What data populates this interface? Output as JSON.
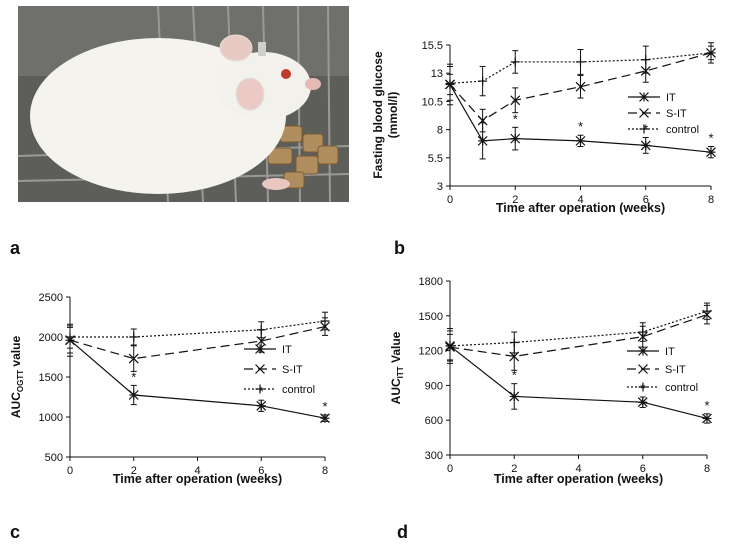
{
  "panels": {
    "a": {
      "letter": "a"
    },
    "b": {
      "letter": "b"
    },
    "c": {
      "letter": "c"
    },
    "d": {
      "letter": "d"
    }
  },
  "photo": {
    "subject": "white-rat-in-cage"
  },
  "colors": {
    "line": "#111111",
    "photo_bg": "#6f6f6c",
    "fur": "#f4f3ee",
    "food": "#b08d5e"
  },
  "chart_data": [
    {
      "id": "b",
      "type": "line",
      "ylabel_lines": [
        "Fasting blood glucose",
        "(mmol/l)"
      ],
      "xlabel": "Time after operation  (weeks)",
      "xlim": [
        0,
        8
      ],
      "xticks": [
        0,
        2,
        4,
        6,
        8
      ],
      "ylim": [
        3,
        15.5
      ],
      "yticks": [
        "3",
        "5.5",
        "8",
        "10.5",
        "13",
        "15.5"
      ],
      "series": [
        {
          "name": "IT",
          "marker": "star",
          "dash": "solid",
          "x": [
            0,
            1,
            2,
            4,
            6,
            8
          ],
          "values": [
            12.0,
            7.0,
            7.2,
            7.0,
            6.6,
            6.0
          ],
          "errors": [
            1.8,
            1.6,
            1.0,
            0.5,
            0.7,
            0.5
          ],
          "sig": [
            false,
            false,
            true,
            true,
            true,
            true
          ]
        },
        {
          "name": "S-IT",
          "marker": "x",
          "dash": "longdash",
          "x": [
            0,
            1,
            2,
            4,
            6,
            8
          ],
          "values": [
            12.0,
            8.8,
            10.6,
            11.8,
            13.2,
            14.8
          ],
          "errors": [
            0.9,
            1.0,
            1.1,
            1.0,
            1.0,
            0.6
          ]
        },
        {
          "name": "control",
          "marker": "plus",
          "dash": "dotted",
          "x": [
            0,
            1,
            2,
            4,
            6,
            8
          ],
          "values": [
            12.1,
            12.3,
            14.0,
            14.0,
            14.2,
            14.8
          ],
          "errors": [
            1.5,
            1.3,
            1.0,
            1.1,
            1.2,
            0.9
          ]
        }
      ],
      "legend_position": "right"
    },
    {
      "id": "c",
      "type": "line",
      "ylabel_main": "AUC",
      "ylabel_sub": "OGTT",
      "ylabel_tail": " value",
      "xlabel": "Time after operation  (weeks)",
      "xlim": [
        0,
        8
      ],
      "xticks": [
        0,
        2,
        4,
        6,
        8
      ],
      "ylim": [
        500,
        2500
      ],
      "yticks": [
        "500",
        "1000",
        "1500",
        "2000",
        "2500"
      ],
      "series": [
        {
          "name": "IT",
          "marker": "star",
          "dash": "solid",
          "x": [
            0,
            2,
            6,
            8
          ],
          "values": [
            1960,
            1275,
            1140,
            985
          ],
          "errors": [
            200,
            120,
            70,
            40
          ],
          "sig": [
            false,
            true,
            true,
            true
          ]
        },
        {
          "name": "S-IT",
          "marker": "x",
          "dash": "longdash",
          "x": [
            0,
            2,
            6,
            8
          ],
          "values": [
            1960,
            1730,
            1950,
            2130
          ],
          "errors": [
            160,
            160,
            140,
            110
          ]
        },
        {
          "name": "control",
          "marker": "plus",
          "dash": "dotted",
          "x": [
            0,
            2,
            6,
            8
          ],
          "values": [
            2000,
            2000,
            2090,
            2200
          ],
          "errors": [
            140,
            100,
            100,
            110
          ]
        }
      ],
      "legend_position": "right"
    },
    {
      "id": "d",
      "type": "line",
      "ylabel_main": "AUC",
      "ylabel_sub": "ITT",
      "ylabel_tail": " Value",
      "xlabel": "Time after operation  (weeks)",
      "xlim": [
        0,
        8
      ],
      "xticks": [
        0,
        2,
        4,
        6,
        8
      ],
      "ylim": [
        300,
        1800
      ],
      "yticks": [
        "300",
        "600",
        "900",
        "1200",
        "1500",
        "1800"
      ],
      "series": [
        {
          "name": "IT",
          "marker": "star",
          "dash": "solid",
          "x": [
            0,
            2,
            6,
            8
          ],
          "values": [
            1240,
            805,
            755,
            615
          ],
          "errors": [
            150,
            110,
            45,
            40
          ],
          "sig": [
            false,
            true,
            true,
            true
          ]
        },
        {
          "name": "S-IT",
          "marker": "x",
          "dash": "longdash",
          "x": [
            0,
            2,
            6,
            8
          ],
          "values": [
            1230,
            1150,
            1320,
            1510
          ],
          "errors": [
            110,
            120,
            90,
            80
          ]
        },
        {
          "name": "control",
          "marker": "plus",
          "dash": "dotted",
          "x": [
            0,
            2,
            6,
            8
          ],
          "values": [
            1240,
            1270,
            1360,
            1540
          ],
          "errors": [
            130,
            90,
            80,
            70
          ]
        }
      ],
      "legend_position": "right"
    }
  ],
  "significance_marker": "*"
}
